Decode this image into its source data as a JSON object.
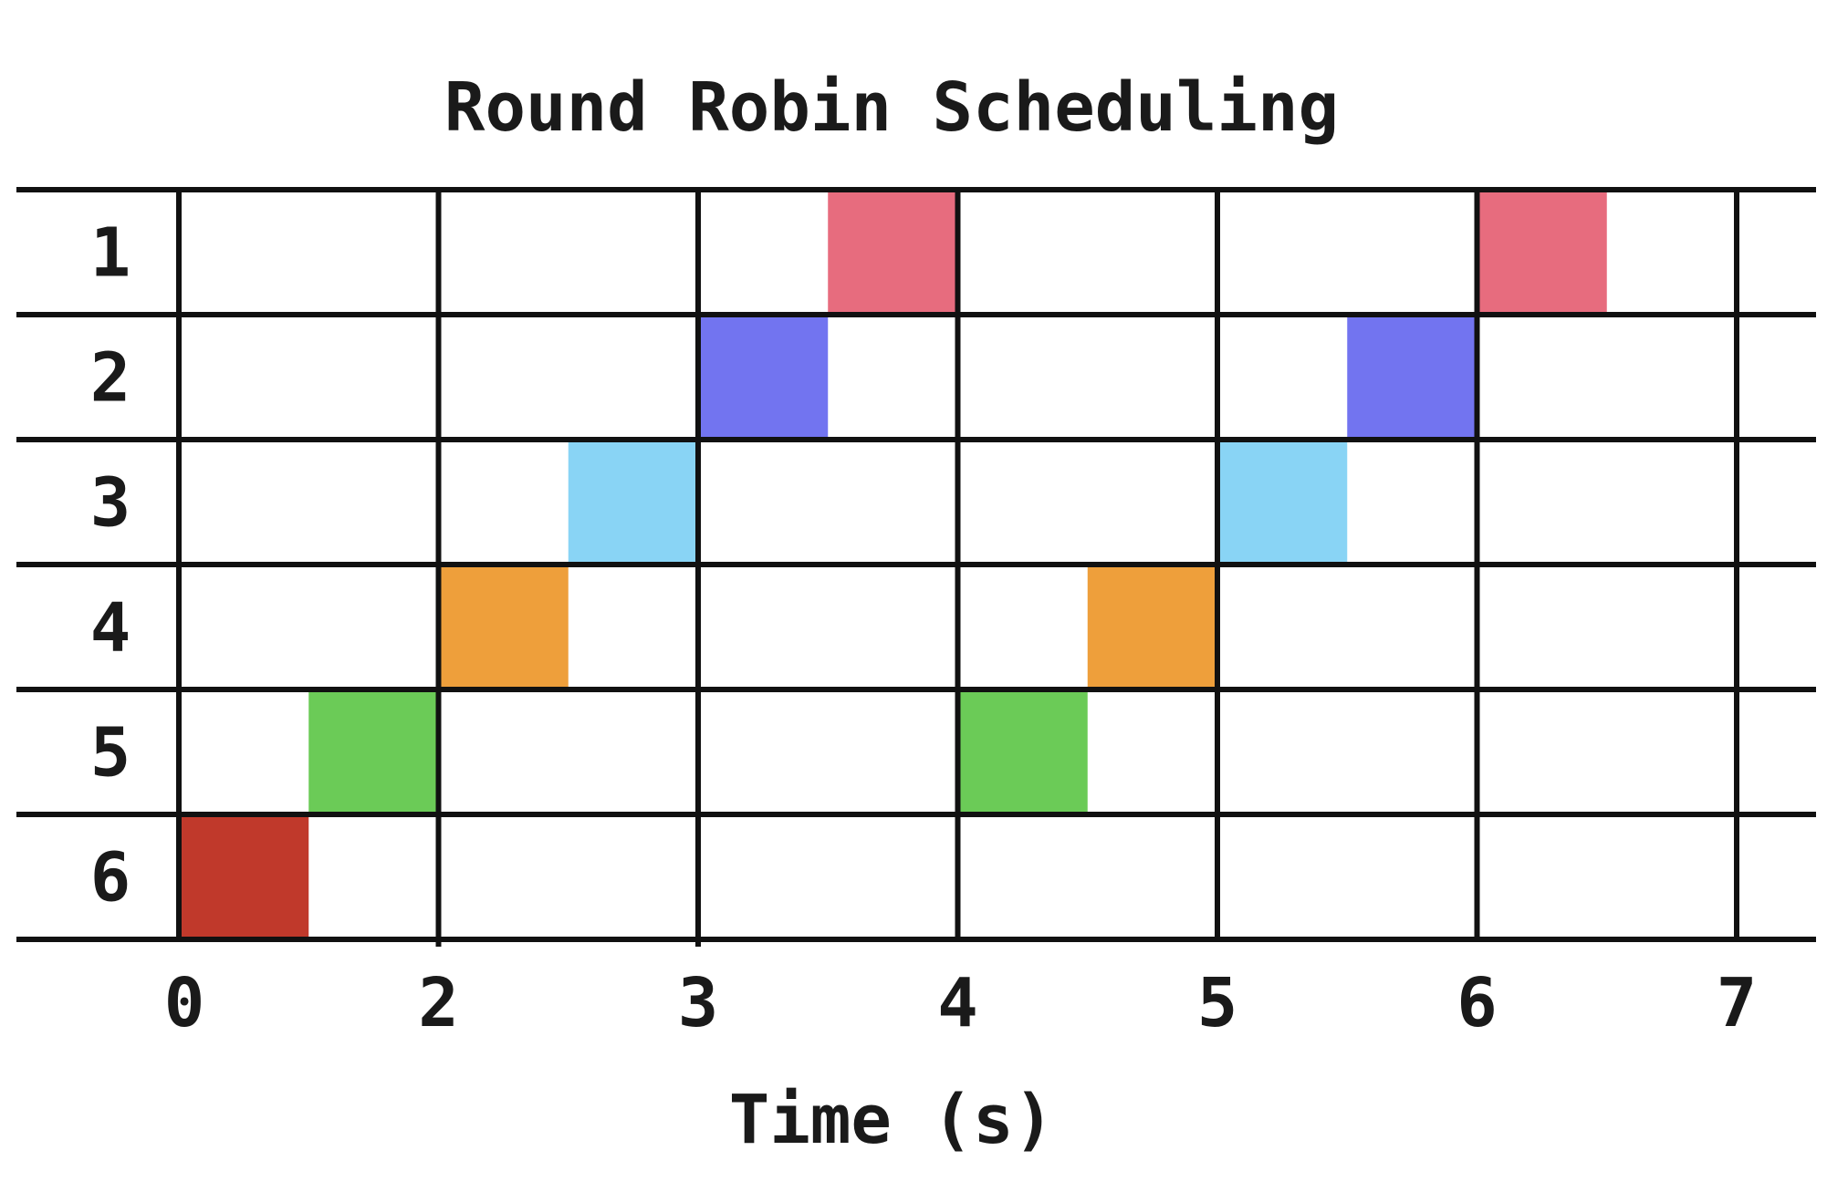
{
  "chart_data": {
    "type": "gantt",
    "title": "Round Robin Scheduling",
    "xlabel": "Time (s)",
    "ylabel": "",
    "x_tick_labels": [
      "0",
      "2",
      "3",
      "4",
      "5",
      "6",
      "7"
    ],
    "rows": [
      "1",
      "2",
      "3",
      "4",
      "5",
      "6"
    ],
    "grid": true,
    "legend": "none",
    "slices": [
      {
        "row": "6",
        "start": 0.0,
        "end": 0.5,
        "color": "#c0392b"
      },
      {
        "row": "5",
        "start": 0.5,
        "end": 1.0,
        "color": "#6bcb57"
      },
      {
        "row": "4",
        "start": 1.0,
        "end": 1.5,
        "color": "#ee9f3b"
      },
      {
        "row": "3",
        "start": 1.5,
        "end": 2.0,
        "color": "#89d4f5"
      },
      {
        "row": "2",
        "start": 2.0,
        "end": 2.5,
        "color": "#7274f0"
      },
      {
        "row": "1",
        "start": 2.5,
        "end": 3.0,
        "color": "#e76c7e"
      },
      {
        "row": "5",
        "start": 3.0,
        "end": 3.5,
        "color": "#6bcb57"
      },
      {
        "row": "4",
        "start": 3.5,
        "end": 4.0,
        "color": "#ee9f3b"
      },
      {
        "row": "3",
        "start": 4.0,
        "end": 4.5,
        "color": "#89d4f5"
      },
      {
        "row": "2",
        "start": 4.5,
        "end": 5.0,
        "color": "#7274f0"
      },
      {
        "row": "1",
        "start": 5.0,
        "end": 5.5,
        "color": "#e76c7e"
      }
    ]
  }
}
